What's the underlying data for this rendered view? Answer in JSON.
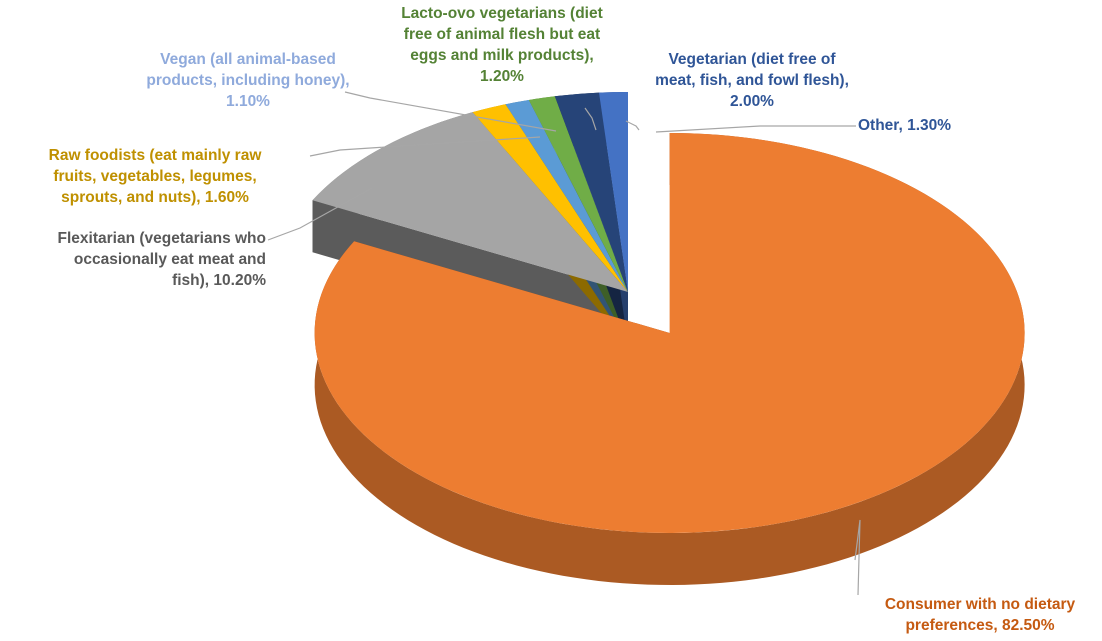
{
  "chart_data": {
    "type": "pie",
    "three_d": true,
    "legend": "none",
    "exploded_slice": "Consumer with no dietary preferences",
    "slices": [
      {
        "name": "Consumer with no dietary preferences",
        "value": 82.5,
        "color": "#ED7D31",
        "label_lines": [
          "Consumer with no dietary",
          "preferences, 82.50%"
        ]
      },
      {
        "name": "Flexitarian (vegetarians who occasionally eat meat and fish)",
        "value": 10.2,
        "color": "#A5A5A5",
        "label_lines": [
          "Flexitarian (vegetarians who",
          "occasionally eat meat and",
          "fish), 10.20%"
        ]
      },
      {
        "name": "Raw foodists (eat mainly raw fruits, vegetables, legumes, sprouts, and nuts)",
        "value": 1.6,
        "color": "#FFC000",
        "label_lines": [
          "Raw foodists (eat mainly raw",
          "fruits, vegetables, legumes,",
          "sprouts, and nuts), 1.60%"
        ]
      },
      {
        "name": "Vegan (all animal-based products, including honey)",
        "value": 1.1,
        "color": "#5B9BD5",
        "label_lines": [
          "Vegan (all animal-based",
          "products, including honey),",
          "1.10%"
        ]
      },
      {
        "name": "Lacto-ovo vegetarians (diet free of animal flesh but eat eggs and milk products)",
        "value": 1.2,
        "color": "#70AD47",
        "label_lines": [
          "Lacto-ovo vegetarians (diet",
          "free of animal flesh but eat",
          "eggs and milk products),",
          "1.20%"
        ]
      },
      {
        "name": "Vegetarian (diet free of meat, fish, and fowl flesh)",
        "value": 2.0,
        "color": "#264478",
        "label_lines": [
          "Vegetarian (diet free of",
          "meat, fish, and fowl flesh),",
          "2.00%"
        ]
      },
      {
        "name": "Other",
        "value": 1.3,
        "color": "#4472C4",
        "label_lines": [
          "Other, 1.30%"
        ]
      }
    ]
  }
}
